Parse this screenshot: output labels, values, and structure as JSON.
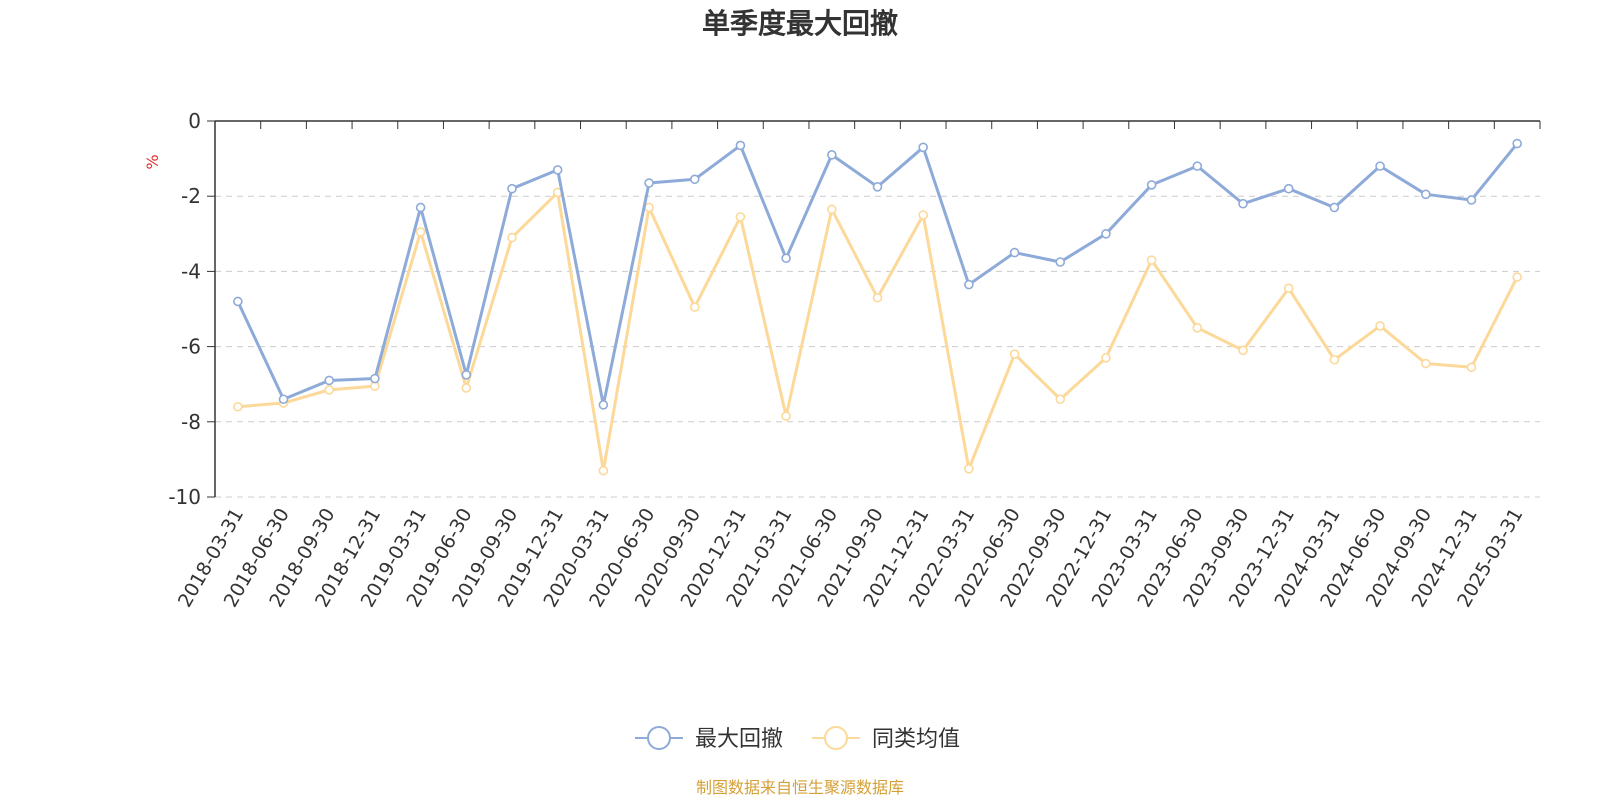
{
  "chart_data": {
    "type": "line",
    "title": "单季度最大回撤",
    "ylabel": "%",
    "ylim": [
      -10,
      0
    ],
    "yticks": [
      0,
      -2,
      -4,
      -6,
      -8,
      -10
    ],
    "grid": true,
    "legend_position": "bottom",
    "categories": [
      "2018-03-31",
      "2018-06-30",
      "2018-09-30",
      "2018-12-31",
      "2019-03-31",
      "2019-06-30",
      "2019-09-30",
      "2019-12-31",
      "2020-03-31",
      "2020-06-30",
      "2020-09-30",
      "2020-12-31",
      "2021-03-31",
      "2021-06-30",
      "2021-09-30",
      "2021-12-31",
      "2022-03-31",
      "2022-06-30",
      "2022-09-30",
      "2022-12-31",
      "2023-03-31",
      "2023-06-30",
      "2023-09-30",
      "2023-12-31",
      "2024-03-31",
      "2024-06-30",
      "2024-09-30",
      "2024-12-31",
      "2025-03-31"
    ],
    "series": [
      {
        "name": "最大回撤",
        "color": "#8eaad8",
        "values": [
          -4.8,
          -7.4,
          -6.9,
          -6.85,
          -2.3,
          -6.75,
          -1.8,
          -1.3,
          -7.55,
          -1.65,
          -1.55,
          -0.65,
          -3.65,
          -0.9,
          -1.75,
          -0.7,
          -4.35,
          -3.5,
          -3.75,
          -3.0,
          -1.7,
          -1.2,
          -2.2,
          -1.8,
          -2.3,
          -1.2,
          -1.95,
          -2.1,
          -0.6
        ]
      },
      {
        "name": "同类均值",
        "color": "#fcd899",
        "values": [
          -7.6,
          -7.5,
          -7.15,
          -7.05,
          -2.95,
          -7.1,
          -3.1,
          -1.9,
          -9.3,
          -2.3,
          -4.95,
          -2.55,
          -7.85,
          -2.35,
          -4.7,
          -2.5,
          -9.25,
          -6.2,
          -7.4,
          -6.3,
          -3.7,
          -5.5,
          -6.1,
          -4.45,
          -6.35,
          -5.45,
          -6.45,
          -6.55,
          -4.15
        ]
      }
    ]
  },
  "footer": {
    "source": "制图数据来自恒生聚源数据库",
    "source_color": "#d4a037"
  },
  "colors": {
    "unit_label": "#e03030",
    "axis": "#333333",
    "grid": "#cccccc"
  }
}
